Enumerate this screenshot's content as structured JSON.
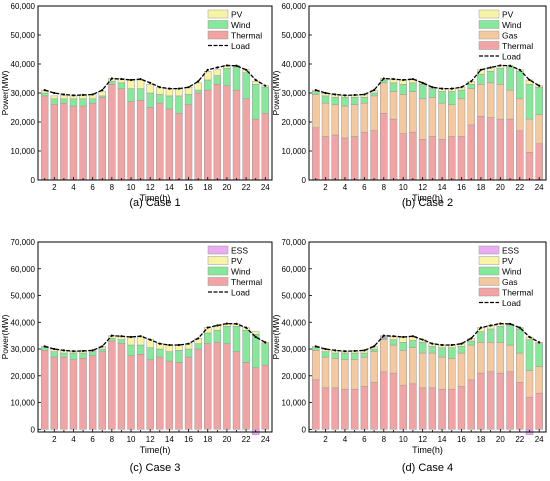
{
  "colors": {
    "thermal": "#f2a3a3",
    "gas": "#f5c9a0",
    "wind": "#86e89a",
    "pv": "#f8f4a6",
    "ess": "#e8aef0",
    "load": "#000000",
    "bar_stroke": "#9a9a9a"
  },
  "chart_data": [
    {
      "type": "bar",
      "caption_prefix": "(a)",
      "caption_text": "Case 1",
      "xlabel": "Time(h)",
      "ylabel": "Power(MW)",
      "ylim": [
        0,
        60000
      ],
      "yticks": [
        0,
        10000,
        20000,
        30000,
        40000,
        50000,
        60000
      ],
      "ytick_labels": [
        "0",
        "10,000",
        "20,000",
        "30,000",
        "40,000",
        "50,000",
        "60,000"
      ],
      "xtick_labels": [
        "2",
        "4",
        "6",
        "8",
        "10",
        "12",
        "14",
        "16",
        "18",
        "20",
        "22",
        "24"
      ],
      "x": [
        1,
        2,
        3,
        4,
        5,
        6,
        7,
        8,
        9,
        10,
        11,
        12,
        13,
        14,
        15,
        16,
        17,
        18,
        19,
        20,
        21,
        22,
        23,
        24
      ],
      "legend": [
        "PV",
        "Wind",
        "Thermal",
        "Load"
      ],
      "series": [
        {
          "name": "Thermal",
          "key": "thermal",
          "values": [
            29000,
            26000,
            26500,
            25500,
            25500,
            26500,
            28500,
            33000,
            31500,
            27000,
            27500,
            25000,
            26500,
            24500,
            23000,
            26000,
            30000,
            31000,
            33000,
            32500,
            31000,
            28000,
            21000,
            23000
          ]
        },
        {
          "name": "Wind",
          "key": "wind",
          "values": [
            1000,
            2000,
            1500,
            2500,
            2500,
            1500,
            500,
            1000,
            2000,
            4500,
            4000,
            5000,
            3000,
            4500,
            6000,
            3500,
            1000,
            3500,
            3000,
            6000,
            8000,
            9000,
            12000,
            9000
          ]
        },
        {
          "name": "PV",
          "key": "pv",
          "values": [
            1000,
            1000,
            1200,
            1000,
            1500,
            1500,
            1500,
            1000,
            1500,
            3000,
            3000,
            3000,
            2500,
            2500,
            2500,
            2500,
            2500,
            3000,
            2000,
            1000,
            500,
            1000,
            1000,
            500
          ]
        }
      ],
      "load": [
        31000,
        30000,
        29500,
        29200,
        29300,
        29500,
        31000,
        35000,
        34800,
        34500,
        34800,
        33500,
        32000,
        31500,
        31500,
        32000,
        34000,
        38000,
        38800,
        39500,
        39400,
        38000,
        34500,
        32500
      ]
    },
    {
      "type": "bar",
      "caption_prefix": "(b)",
      "caption_text": "Case 2",
      "xlabel": "Time(h)",
      "ylabel": "Power(MW)",
      "ylim": [
        0,
        60000
      ],
      "yticks": [
        0,
        10000,
        20000,
        30000,
        40000,
        50000,
        60000
      ],
      "ytick_labels": [
        "0",
        "10,000",
        "20,000",
        "30,000",
        "40,000",
        "50,000",
        "60,000"
      ],
      "xtick_labels": [
        "2",
        "4",
        "6",
        "8",
        "10",
        "12",
        "14",
        "16",
        "18",
        "20",
        "22",
        "24"
      ],
      "x": [
        1,
        2,
        3,
        4,
        5,
        6,
        7,
        8,
        9,
        10,
        11,
        12,
        13,
        14,
        15,
        16,
        17,
        18,
        19,
        20,
        21,
        22,
        23,
        24
      ],
      "legend": [
        "PV",
        "Wind",
        "Gas",
        "Thermal",
        "Load"
      ],
      "series": [
        {
          "name": "Thermal",
          "key": "thermal",
          "values": [
            18000,
            15000,
            15500,
            14500,
            15000,
            16500,
            17000,
            23000,
            21000,
            16000,
            16500,
            14000,
            15000,
            14000,
            15000,
            15000,
            19000,
            22000,
            21500,
            21000,
            21000,
            17000,
            9500,
            12500
          ]
        },
        {
          "name": "Gas",
          "key": "gas",
          "values": [
            11500,
            11500,
            10500,
            11000,
            11000,
            10000,
            12000,
            10500,
            9500,
            13500,
            14000,
            14000,
            13500,
            12500,
            11000,
            13000,
            12500,
            11000,
            12000,
            12000,
            10000,
            11000,
            11500,
            10000
          ]
        },
        {
          "name": "Wind",
          "key": "wind",
          "values": [
            1000,
            2500,
            2500,
            3000,
            2500,
            2000,
            1000,
            1000,
            3000,
            3500,
            3000,
            5000,
            3000,
            4000,
            4500,
            3000,
            1500,
            3500,
            4000,
            5500,
            8000,
            9500,
            12000,
            9500
          ]
        },
        {
          "name": "PV",
          "key": "pv",
          "values": [
            500,
            1000,
            1000,
            700,
            800,
            1000,
            1000,
            500,
            1300,
            1500,
            1300,
            500,
            500,
            1000,
            1000,
            1000,
            1000,
            1500,
            1300,
            1000,
            400,
            500,
            1500,
            500
          ]
        }
      ],
      "load": [
        31000,
        30000,
        29500,
        29200,
        29300,
        29500,
        31000,
        35000,
        34800,
        34500,
        34800,
        33500,
        32000,
        31500,
        31500,
        32000,
        34000,
        38000,
        38800,
        39500,
        39400,
        38000,
        34500,
        32500
      ]
    },
    {
      "type": "bar",
      "caption_prefix": "(c)",
      "caption_text": "Case 3",
      "xlabel": "Time(h)",
      "ylabel": "Power(MW)",
      "ylim": [
        -1000,
        70000
      ],
      "yticks": [
        0,
        10000,
        20000,
        30000,
        40000,
        50000,
        60000,
        70000
      ],
      "ytick_labels": [
        "0",
        "10,000",
        "20,000",
        "30,000",
        "40,000",
        "50,000",
        "60,000",
        "70,000"
      ],
      "xtick_labels": [
        "2",
        "4",
        "6",
        "8",
        "10",
        "12",
        "14",
        "16",
        "18",
        "20",
        "22",
        "24"
      ],
      "x": [
        1,
        2,
        3,
        4,
        5,
        6,
        7,
        8,
        9,
        10,
        11,
        12,
        13,
        14,
        15,
        16,
        17,
        18,
        19,
        20,
        21,
        22,
        23,
        24
      ],
      "legend": [
        "ESS",
        "PV",
        "Wind",
        "Thermal",
        "Load"
      ],
      "series": [
        {
          "name": "Thermal",
          "key": "thermal",
          "values": [
            29500,
            27000,
            27000,
            26000,
            26500,
            27500,
            29000,
            33000,
            32000,
            27500,
            28000,
            26000,
            27000,
            25500,
            25000,
            27000,
            30000,
            32000,
            32500,
            32000,
            29000,
            25000,
            23000,
            24000
          ]
        },
        {
          "name": "Wind",
          "key": "wind",
          "values": [
            1000,
            2000,
            1500,
            2500,
            2000,
            1500,
            1000,
            1000,
            1500,
            4000,
            3500,
            4500,
            3000,
            3500,
            4500,
            3000,
            2000,
            4000,
            4500,
            6500,
            9500,
            12000,
            12500,
            8000
          ]
        },
        {
          "name": "PV",
          "key": "pv",
          "values": [
            500,
            1000,
            1000,
            700,
            800,
            500,
            1000,
            1000,
            1300,
            3000,
            3300,
            3000,
            2000,
            2500,
            2000,
            2000,
            2000,
            2000,
            1800,
            1000,
            900,
            1000,
            1000,
            500
          ]
        },
        {
          "name": "ESS",
          "key": "ess",
          "values": [
            0,
            0,
            0,
            0,
            0,
            0,
            0,
            0,
            0,
            0,
            0,
            0,
            0,
            0,
            0,
            0,
            0,
            0,
            0,
            0,
            0,
            0,
            -2000,
            0
          ]
        }
      ],
      "load": [
        31000,
        30000,
        29500,
        29200,
        29300,
        29500,
        31000,
        35000,
        34800,
        34500,
        34800,
        33500,
        32000,
        31500,
        31500,
        32000,
        34000,
        38000,
        38800,
        39500,
        39400,
        38000,
        34500,
        32500
      ]
    },
    {
      "type": "bar",
      "caption_prefix": "(d)",
      "caption_text": "Case 4",
      "xlabel": "Time(h)",
      "ylabel": "Power(MW)",
      "ylim": [
        -1000,
        70000
      ],
      "yticks": [
        0,
        10000,
        20000,
        30000,
        40000,
        50000,
        60000,
        70000
      ],
      "ytick_labels": [
        "0",
        "10,000",
        "20,000",
        "30,000",
        "40,000",
        "50,000",
        "60,000",
        "70,000"
      ],
      "xtick_labels": [
        "2",
        "4",
        "6",
        "8",
        "10",
        "12",
        "14",
        "16",
        "18",
        "20",
        "22",
        "24"
      ],
      "x": [
        1,
        2,
        3,
        4,
        5,
        6,
        7,
        8,
        9,
        10,
        11,
        12,
        13,
        14,
        15,
        16,
        17,
        18,
        19,
        20,
        21,
        22,
        23,
        24
      ],
      "legend": [
        "ESS",
        "PV",
        "Wind",
        "Gas",
        "Thermal",
        "Load"
      ],
      "series": [
        {
          "name": "Thermal",
          "key": "thermal",
          "values": [
            18500,
            15500,
            15500,
            15000,
            15000,
            16000,
            17500,
            21500,
            21000,
            16500,
            17000,
            15500,
            15500,
            15000,
            15000,
            16000,
            18500,
            21000,
            21500,
            21000,
            21500,
            17500,
            12000,
            13500
          ]
        },
        {
          "name": "Gas",
          "key": "gas",
          "values": [
            11000,
            11500,
            11000,
            11000,
            11000,
            11000,
            11500,
            12000,
            10500,
            13000,
            13500,
            13000,
            13000,
            12000,
            11500,
            12500,
            13000,
            11500,
            11000,
            11500,
            10000,
            11000,
            10000,
            10000
          ]
        },
        {
          "name": "Wind",
          "key": "wind",
          "values": [
            1000,
            2000,
            2000,
            2500,
            2500,
            1500,
            1000,
            500,
            2000,
            3000,
            2700,
            4000,
            2500,
            3500,
            4000,
            2500,
            1500,
            4000,
            5000,
            6000,
            7500,
            9000,
            11500,
            8500
          ]
        },
        {
          "name": "PV",
          "key": "pv",
          "values": [
            500,
            1000,
            1000,
            700,
            800,
            1000,
            1000,
            300,
            1300,
            2000,
            1600,
            1000,
            1000,
            1000,
            1000,
            1000,
            1000,
            1500,
            1300,
            1000,
            400,
            500,
            1000,
            500
          ]
        },
        {
          "name": "ESS",
          "key": "ess",
          "values": [
            0,
            0,
            0,
            0,
            0,
            0,
            0,
            700,
            0,
            0,
            0,
            0,
            0,
            0,
            0,
            0,
            0,
            0,
            0,
            0,
            0,
            0,
            -2000,
            0
          ]
        }
      ],
      "load": [
        31000,
        30000,
        29500,
        29200,
        29300,
        29500,
        31000,
        35000,
        34800,
        34500,
        34800,
        33500,
        32000,
        31500,
        31500,
        32000,
        34000,
        38000,
        38800,
        39500,
        39400,
        38000,
        34500,
        32500
      ]
    }
  ]
}
